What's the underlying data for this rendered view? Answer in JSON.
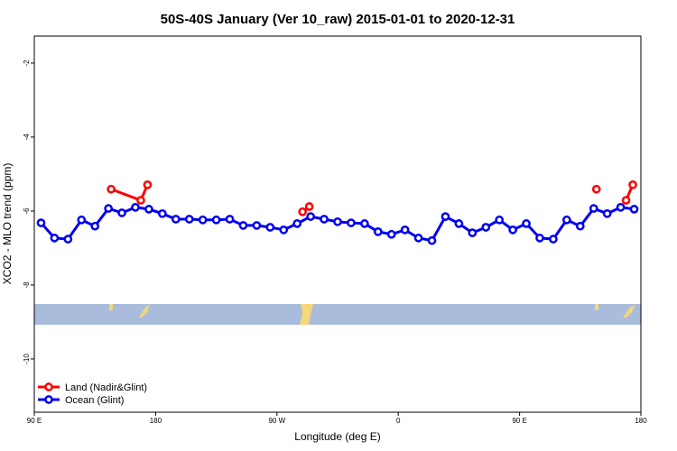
{
  "chart_data": {
    "type": "line",
    "title": "50S-40S January (Ver 10_raw)   2015-01-01 to 2020-12-31",
    "x_label": "Longitude (deg E)",
    "y_label": "XCO2 - MLO trend (ppm)",
    "xlim": [
      90,
      540
    ],
    "ylim": [
      -11.44,
      -1.27
    ],
    "xticks": [
      {
        "value": 90,
        "label": "90 E"
      },
      180,
      {
        "value": 270,
        "label": "90 W"
      },
      {
        "value": 360,
        "label": "0"
      },
      {
        "value": 450,
        "label": "90 E"
      },
      {
        "value": 540,
        "label": "180"
      }
    ],
    "yticks": [
      -2,
      -4,
      -6,
      -8,
      -10
    ],
    "legend": "bottom-left",
    "series": [
      {
        "name": "Land (Nadir&Glint)",
        "color": "#ff0000",
        "x": [
          147,
          169,
          174,
          230,
          289,
          294,
          400,
          507,
          518,
          529,
          534
        ],
        "values": [
          -5.41,
          -5.71,
          -5.29,
          null,
          -6.02,
          -5.88,
          null,
          -5.41,
          null,
          -5.71,
          -5.29
        ]
      },
      {
        "name": "Ocean (Glint)",
        "color": "#0000ee",
        "x": [
          95,
          105,
          115,
          125,
          135,
          145,
          155,
          165,
          175,
          185,
          195,
          205,
          215,
          225,
          235,
          245,
          255,
          265,
          275,
          285,
          295,
          305,
          315,
          325,
          335,
          345,
          355,
          365,
          375,
          385,
          395,
          405,
          415,
          425,
          435,
          445,
          455,
          465,
          475,
          485,
          495,
          505,
          515,
          525,
          535
        ],
        "values": [
          -6.32,
          -6.73,
          -6.76,
          -6.24,
          -6.41,
          -5.93,
          -6.05,
          -5.9,
          -5.95,
          -6.07,
          -6.22,
          -6.22,
          -6.24,
          -6.24,
          -6.22,
          -6.39,
          -6.39,
          -6.44,
          -6.51,
          -6.34,
          -6.15,
          -6.22,
          -6.29,
          -6.32,
          -6.34,
          -6.56,
          -6.63,
          -6.51,
          -6.73,
          -6.8,
          -6.15,
          -6.34,
          -6.59,
          -6.44,
          -6.24,
          -6.51,
          -6.34,
          -6.73,
          -6.76,
          -6.24,
          -6.41,
          -5.93,
          -6.07,
          -5.9,
          -5.95
        ]
      }
    ]
  }
}
